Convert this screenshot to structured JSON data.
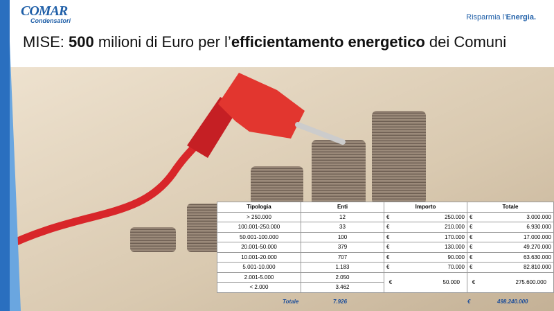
{
  "header": {
    "logo": {
      "name": "COMAR",
      "subtitle": "Condensatori"
    },
    "tagline": {
      "parts": [
        {
          "text": "Risparmia l’",
          "bold": false
        },
        {
          "text": "Energia.",
          "bold": true
        }
      ]
    },
    "title": {
      "parts": [
        {
          "text": "MISE: ",
          "bold": false
        },
        {
          "text": "500",
          "bold": true
        },
        {
          "text": " milioni di Euro per l’",
          "bold": false
        },
        {
          "text": "efficientamento energetico",
          "bold": true
        },
        {
          "text": " dei Comuni",
          "bold": false
        }
      ]
    }
  },
  "table": {
    "columns": [
      "Tipologia",
      "Enti",
      "Importo",
      "Totale"
    ],
    "rows": [
      [
        "> 250.000",
        "12",
        "€",
        "250.000",
        "€",
        "3.000.000"
      ],
      [
        "100.001-250.000",
        "33",
        "€",
        "210.000",
        "€",
        "6.930.000"
      ],
      [
        "50.001-100.000",
        "100",
        "€",
        "170.000",
        "€",
        "17.000.000"
      ],
      [
        "20.001-50.000",
        "379",
        "€",
        "130.000",
        "€",
        "49.270.000"
      ],
      [
        "10.001-20.000",
        "707",
        "€",
        "90.000",
        "€",
        "63.630.000"
      ],
      [
        "5.001-10.000",
        "1.183",
        "€",
        "70.000",
        "€",
        "82.810.000"
      ]
    ],
    "group": {
      "rows": [
        [
          "2.001-5.000",
          "2.050"
        ],
        [
          "< 2.000",
          "3.462"
        ]
      ],
      "importo": [
        "€",
        "50.000"
      ],
      "totale": [
        "€",
        "275.600.000"
      ]
    },
    "total": {
      "label": "Totale",
      "enti": "7.926",
      "currency": "€",
      "totale": "498.240.000"
    }
  }
}
